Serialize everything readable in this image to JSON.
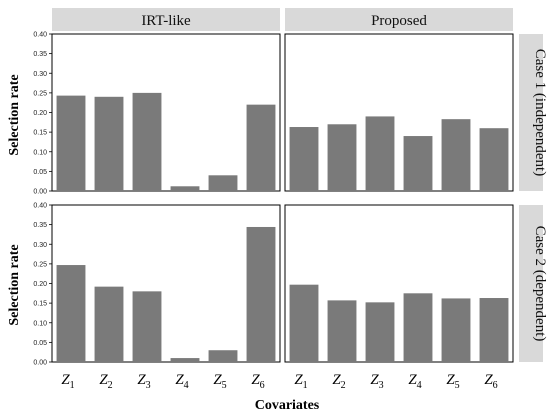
{
  "chart_data": {
    "type": "bar",
    "columns": [
      "IRT-like",
      "Proposed"
    ],
    "rows": [
      "Case 1 (independent)",
      "Case 2 (dependent)"
    ],
    "categories": [
      {
        "base": "Z",
        "sub": "1"
      },
      {
        "base": "Z",
        "sub": "2"
      },
      {
        "base": "Z",
        "sub": "3"
      },
      {
        "base": "Z",
        "sub": "4"
      },
      {
        "base": "Z",
        "sub": "5"
      },
      {
        "base": "Z",
        "sub": "6"
      }
    ],
    "xlabel": "Covariates",
    "ylabel": "Selection rate",
    "ylim": [
      0,
      0.4
    ],
    "yticks": [
      "0.00",
      "0.05",
      "0.10",
      "0.15",
      "0.20",
      "0.25",
      "0.30",
      "0.35",
      "0.40"
    ],
    "bar_color": "#7a7a7a",
    "panels": [
      {
        "row": "Case 1 (independent)",
        "column": "IRT-like",
        "values": [
          0.243,
          0.24,
          0.25,
          0.012,
          0.04,
          0.22
        ]
      },
      {
        "row": "Case 1 (independent)",
        "column": "Proposed",
        "values": [
          0.163,
          0.17,
          0.19,
          0.14,
          0.183,
          0.16
        ]
      },
      {
        "row": "Case 2 (dependent)",
        "column": "IRT-like",
        "values": [
          0.247,
          0.192,
          0.18,
          0.01,
          0.03,
          0.344
        ]
      },
      {
        "row": "Case 2 (dependent)",
        "column": "Proposed",
        "values": [
          0.197,
          0.157,
          0.152,
          0.175,
          0.162,
          0.163
        ]
      }
    ]
  }
}
